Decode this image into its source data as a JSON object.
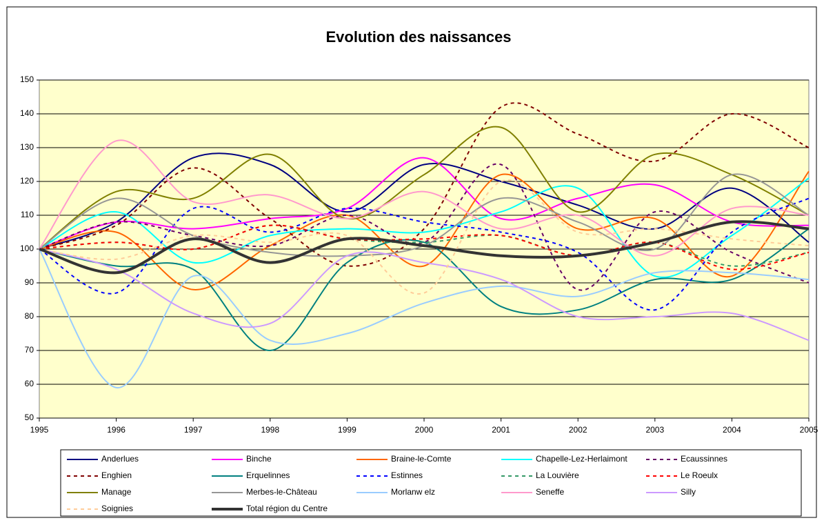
{
  "chart_data": {
    "type": "line",
    "title": "Evolution des naissances",
    "categories": [
      "1995",
      "1996",
      "1997",
      "1998",
      "1999",
      "2000",
      "2001",
      "2002",
      "2003",
      "2004",
      "2005"
    ],
    "ylim": [
      50,
      150
    ],
    "yticks": [
      50,
      60,
      70,
      80,
      90,
      100,
      110,
      120,
      130,
      140,
      150
    ],
    "grid": true,
    "legend": "bottom",
    "series": [
      {
        "name": "Anderlues",
        "color": "#000080",
        "dash": false,
        "values": [
          100,
          108,
          127,
          125,
          111,
          125,
          120,
          113,
          106,
          118,
          102
        ]
      },
      {
        "name": "Binche",
        "color": "#ff00ff",
        "dash": false,
        "values": [
          100,
          108,
          106,
          109,
          112,
          127,
          109,
          115,
          119,
          108,
          107
        ]
      },
      {
        "name": "Braine-le-Comte",
        "color": "#ff6600",
        "dash": false,
        "values": [
          100,
          105,
          88,
          101,
          110,
          95,
          122,
          106,
          109,
          92,
          123
        ]
      },
      {
        "name": "Chapelle-Lez-Herlaimont",
        "color": "#00ffff",
        "dash": false,
        "values": [
          100,
          111,
          96,
          104,
          106,
          105,
          111,
          118,
          92,
          104,
          121
        ]
      },
      {
        "name": "Ecaussinnes",
        "color": "#660066",
        "dash": true,
        "values": [
          100,
          108,
          104,
          101,
          110,
          102,
          125,
          88,
          111,
          99,
          90
        ]
      },
      {
        "name": "Enghien",
        "color": "#800000",
        "dash": true,
        "values": [
          100,
          107,
          124,
          109,
          95,
          106,
          142,
          134,
          126,
          140,
          130
        ]
      },
      {
        "name": "Erquelinnes",
        "color": "#008080",
        "dash": false,
        "values": [
          100,
          95,
          94,
          70,
          96,
          102,
          83,
          82,
          91,
          91,
          106
        ]
      },
      {
        "name": "Estinnes",
        "color": "#0000ff",
        "dash": true,
        "values": [
          100,
          87,
          112,
          105,
          112,
          108,
          105,
          99,
          82,
          105,
          115
        ]
      },
      {
        "name": "La Louvière",
        "color": "#339966",
        "dash": true,
        "values": [
          100,
          102,
          100,
          107,
          103,
          102,
          104,
          98,
          102,
          95,
          99
        ]
      },
      {
        "name": "Le Roeulx",
        "color": "#ff0000",
        "dash": true,
        "values": [
          100,
          102,
          100,
          107,
          103,
          103,
          104,
          98,
          102,
          94,
          99
        ]
      },
      {
        "name": "Manage",
        "color": "#808000",
        "dash": false,
        "values": [
          100,
          117,
          115,
          128,
          109,
          122,
          136,
          111,
          128,
          122,
          110
        ]
      },
      {
        "name": "Merbes-le-Château",
        "color": "#969696",
        "dash": false,
        "values": [
          100,
          115,
          104,
          99,
          98,
          101,
          115,
          108,
          100,
          122,
          110
        ]
      },
      {
        "name": "Morlanw elz",
        "color": "#99ccff",
        "dash": false,
        "values": [
          100,
          59,
          92,
          73,
          75,
          84,
          89,
          86,
          93,
          93,
          91
        ]
      },
      {
        "name": "Seneffe",
        "color": "#ff99cc",
        "dash": false,
        "values": [
          100,
          132,
          114,
          116,
          109,
          117,
          106,
          110,
          98,
          112,
          110
        ]
      },
      {
        "name": "Silly",
        "color": "#cc99ff",
        "dash": false,
        "values": [
          100,
          94,
          81,
          78,
          98,
          96,
          91,
          80,
          80,
          81,
          73
        ]
      },
      {
        "name": "Soignies",
        "color": "#ffcc99",
        "dash": true,
        "values": [
          100,
          97,
          104,
          102,
          104,
          87,
          120,
          105,
          106,
          103,
          101
        ]
      },
      {
        "name": "Total région du Centre",
        "color": "#333333",
        "dash": false,
        "width": 4,
        "values": [
          100,
          93,
          103,
          96,
          103,
          101,
          98,
          98,
          102,
          108,
          106
        ]
      }
    ]
  }
}
